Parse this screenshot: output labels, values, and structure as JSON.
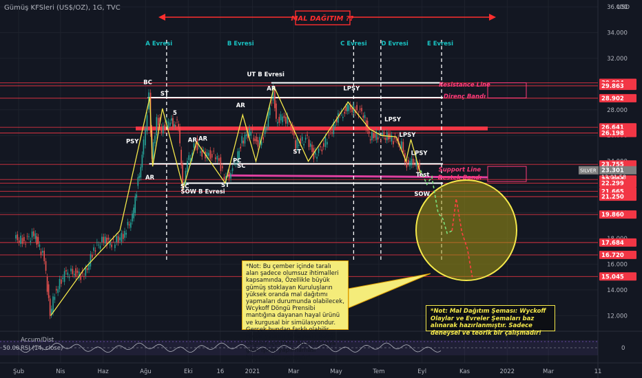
{
  "symbol": "Gümüş KFSleri (US$/OZ), 1G, TVC",
  "currency": "USD",
  "ticker_tag": "SILVER",
  "price_now": "23.301",
  "countdown": "13:01:58",
  "title_box": "MAL DAĞITIM ??",
  "indicators": {
    "accum": "Accum/Dist",
    "rsi": "RSI (14, close)",
    "rsi_scale": "50.00",
    "rsi_right": "0"
  },
  "note_main": "*Not: Bu çember içinde taralı alan şadece olumsuz ihtimalleri kapsamında, Özellikle büyük gümüş stoklayan Kuruluşların yüksek oranda mal dağıtımı yapmaları durumunda olabilecek, Wcykoff Döngü Prensibi mantığına dayanan hayal ürünü ve kurgusal bir simülasyondur. Gerçek bundan farklı olabilir. Hiçbir yatırım tavsiyesi niteliği değildir içermez. Bu çalışmaya göre işlem yapılmaması hususunda uyarımdır!",
  "note_side": "*Not: Mal Dağıtım Şeması: Wyckoff Olaylar ve Evreler Şemaları baz alınarak hazırlanmıştır. Sadece deneysel ve teorik bir çalışmadır!",
  "chart_data": {
    "type": "line",
    "title": "Gümüş KFSleri (US$/OZ), 1G, TVC",
    "ylim": [
      11.0,
      36.0
    ],
    "y_ticks": [
      12.0,
      14.0,
      16.0,
      18.0,
      20.0,
      22.0,
      24.0,
      26.0,
      28.0,
      30.0,
      32.0,
      34.0,
      36.0
    ],
    "y_tick_labels": [
      "12.000",
      "14.000",
      "16.000",
      "18.000",
      "20.000",
      "22.000",
      "24.000",
      "26.000",
      "28.000",
      "30.000",
      "32.000",
      "34.000",
      "36.000"
    ],
    "x_ticks": [
      "Şub",
      "Nis",
      "Haz",
      "Ağu",
      "Eki",
      "16",
      "2021",
      "Mar",
      "May",
      "Tem",
      "Eyl",
      "Kas",
      "2022",
      "Mar",
      "11"
    ],
    "x_range": [
      "2020-01-27",
      "2022-05-11"
    ],
    "x_tick_dates": [
      "2020-02-01",
      "2020-04-01",
      "2020-06-01",
      "2020-08-01",
      "2020-10-01",
      "2020-11-16",
      "2021-01-01",
      "2021-03-01",
      "2021-05-01",
      "2021-07-01",
      "2021-09-01",
      "2021-11-01",
      "2022-01-01",
      "2022-03-01",
      "2022-05-11"
    ],
    "price_series": [
      [
        "2020-01-27",
        18.0
      ],
      [
        "2020-02-10",
        17.8
      ],
      [
        "2020-02-24",
        18.3
      ],
      [
        "2020-03-03",
        17.3
      ],
      [
        "2020-03-10",
        16.4
      ],
      [
        "2020-03-18",
        12.0
      ],
      [
        "2020-03-25",
        13.8
      ],
      [
        "2020-04-08",
        15.2
      ],
      [
        "2020-04-22",
        15.4
      ],
      [
        "2020-05-06",
        15.0
      ],
      [
        "2020-05-20",
        17.2
      ],
      [
        "2020-06-03",
        17.9
      ],
      [
        "2020-06-17",
        17.6
      ],
      [
        "2020-07-01",
        18.3
      ],
      [
        "2020-07-14",
        19.6
      ],
      [
        "2020-07-22",
        22.5
      ],
      [
        "2020-07-28",
        24.2
      ],
      [
        "2020-08-07",
        29.0
      ],
      [
        "2020-08-11",
        24.0
      ],
      [
        "2020-08-18",
        27.4
      ],
      [
        "2020-08-25",
        26.4
      ],
      [
        "2020-09-04",
        27.1
      ],
      [
        "2020-09-10",
        27.0
      ],
      [
        "2020-09-18",
        26.8
      ],
      [
        "2020-09-24",
        22.0
      ],
      [
        "2020-10-01",
        23.8
      ],
      [
        "2020-10-13",
        25.4
      ],
      [
        "2020-10-22",
        24.6
      ],
      [
        "2020-11-03",
        24.5
      ],
      [
        "2020-11-13",
        24.4
      ],
      [
        "2020-11-23",
        22.7
      ],
      [
        "2020-11-30",
        23.0
      ],
      [
        "2020-12-10",
        24.1
      ],
      [
        "2020-12-18",
        25.6
      ],
      [
        "2020-12-31",
        26.4
      ],
      [
        "2021-01-08",
        25.3
      ],
      [
        "2021-01-18",
        25.8
      ],
      [
        "2021-02-01",
        29.4
      ],
      [
        "2021-02-05",
        27.0
      ],
      [
        "2021-02-12",
        27.3
      ],
      [
        "2021-02-24",
        27.2
      ],
      [
        "2021-03-05",
        25.3
      ],
      [
        "2021-03-22",
        25.8
      ],
      [
        "2021-03-31",
        24.4
      ],
      [
        "2021-04-12",
        25.1
      ],
      [
        "2021-04-22",
        26.0
      ],
      [
        "2021-05-05",
        27.4
      ],
      [
        "2021-05-12",
        27.8
      ],
      [
        "2021-05-18",
        28.1
      ],
      [
        "2021-06-01",
        28.0
      ],
      [
        "2021-06-10",
        27.7
      ],
      [
        "2021-06-18",
        25.9
      ],
      [
        "2021-07-01",
        26.0
      ],
      [
        "2021-07-16",
        25.9
      ],
      [
        "2021-07-28",
        25.5
      ],
      [
        "2021-08-04",
        25.2
      ],
      [
        "2021-08-09",
        23.8
      ],
      [
        "2021-08-16",
        23.8
      ],
      [
        "2021-08-25",
        24.0
      ],
      [
        "2021-08-30",
        23.3
      ]
    ],
    "projection_green": [
      [
        "2021-08-30",
        23.3
      ],
      [
        "2021-09-08",
        22.2
      ],
      [
        "2021-09-15",
        22.8
      ],
      [
        "2021-09-24",
        20.0
      ],
      [
        "2021-10-01",
        19.5
      ],
      [
        "2021-10-07",
        18.4
      ],
      [
        "2021-10-14",
        18.6
      ]
    ],
    "projection_red": [
      [
        "2021-10-14",
        18.6
      ],
      [
        "2021-10-20",
        21.1
      ],
      [
        "2021-10-28",
        18.5
      ],
      [
        "2021-11-05",
        17.2
      ],
      [
        "2021-11-12",
        15.0
      ]
    ],
    "levels": [
      {
        "value": 30.094,
        "label": "30.094"
      },
      {
        "value": 29.863,
        "label": "29.863"
      },
      {
        "value": 28.902,
        "label": "28.902"
      },
      {
        "value": 26.641,
        "label": "26.641"
      },
      {
        "value": 26.198,
        "label": "26.198"
      },
      {
        "value": 23.755,
        "label": "23.755"
      },
      {
        "value": 22.584,
        "label": "22.584"
      },
      {
        "value": 22.299,
        "label": "22.299"
      },
      {
        "value": 21.665,
        "label": "21.665"
      },
      {
        "value": 21.25,
        "label": "21.250"
      },
      {
        "value": 19.86,
        "label": "19.860"
      },
      {
        "value": 17.684,
        "label": "17.684"
      },
      {
        "value": 16.72,
        "label": "16.720"
      },
      {
        "value": 15.045,
        "label": "15.045"
      }
    ],
    "annotations": [
      {
        "text": "A Evresi",
        "x": "2020-08-20",
        "y": 33.0
      },
      {
        "text": "B Evresi",
        "x": "2020-12-15",
        "y": 33.0
      },
      {
        "text": "C Evresi",
        "x": "2021-05-26",
        "y": 33.0
      },
      {
        "text": "D Evresi",
        "x": "2021-07-24",
        "y": 33.0
      },
      {
        "text": "E Evresi",
        "x": "2021-09-27",
        "y": 33.0
      },
      {
        "text": "BC",
        "x": "2020-08-04",
        "y": 30.0
      },
      {
        "text": "ST",
        "x": "2020-08-28",
        "y": 29.1
      },
      {
        "text": "5",
        "x": "2020-09-12",
        "y": 27.6
      },
      {
        "text": "PSY",
        "x": "2020-07-13",
        "y": 25.4
      },
      {
        "text": "AR",
        "x": "2020-08-07",
        "y": 22.6
      },
      {
        "text": "SC",
        "x": "2020-09-26",
        "y": 21.9
      },
      {
        "text": "AR",
        "x": "2020-10-07",
        "y": 25.5
      },
      {
        "text": "AR",
        "x": "2020-10-22",
        "y": 25.6
      },
      {
        "text": "SOW B Evresi",
        "x": "2020-10-22",
        "y": 21.5
      },
      {
        "text": "ST",
        "x": "2020-11-23",
        "y": 22.0
      },
      {
        "text": "AR",
        "x": "2020-12-15",
        "y": 28.2
      },
      {
        "text": "PC",
        "x": "2020-12-10",
        "y": 23.9
      },
      {
        "text": "SC",
        "x": "2020-12-16",
        "y": 23.5
      },
      {
        "text": "UT B Evresi",
        "x": "2021-01-20",
        "y": 30.6
      },
      {
        "text": "AR",
        "x": "2021-01-28",
        "y": 29.5
      },
      {
        "text": "ST",
        "x": "2021-03-06",
        "y": 24.6
      },
      {
        "text": "LPSY",
        "x": "2021-05-23",
        "y": 29.5
      },
      {
        "text": "LPSY",
        "x": "2021-07-21",
        "y": 27.1
      },
      {
        "text": "LPSY",
        "x": "2021-08-11",
        "y": 25.9
      },
      {
        "text": "LPSY",
        "x": "2021-08-28",
        "y": 24.5
      },
      {
        "text": "Test",
        "x": "2021-09-02",
        "y": 22.8
      },
      {
        "text": "SOW",
        "x": "2021-09-01",
        "y": 21.3
      },
      {
        "text": "Resistance Line",
        "x": "2021-11-01",
        "y": 29.8
      },
      {
        "text": "Direnç Bandı",
        "x": "2021-11-01",
        "y": 28.9
      },
      {
        "text": "Support Line",
        "x": "2021-10-25",
        "y": 23.2
      },
      {
        "text": "Destek Bandı",
        "x": "2021-10-25",
        "y": 22.6
      }
    ]
  },
  "colors": {
    "bg": "#131722",
    "up": "#26a69a",
    "down": "#ef5350",
    "level": "#f23645",
    "yellow": "#f5e94b",
    "white": "#ffffff",
    "magenta": "#e040a0",
    "grid": "#1e222d",
    "text": "#b2b5be"
  }
}
